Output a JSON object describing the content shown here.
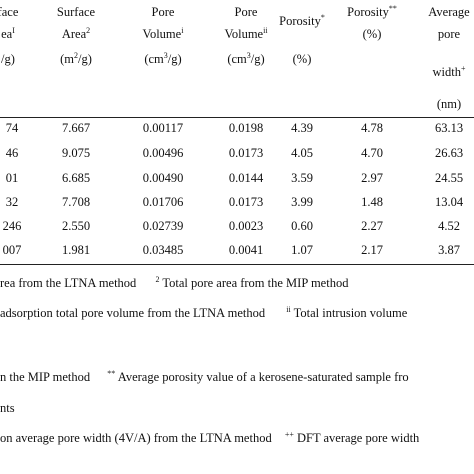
{
  "header": {
    "col1": {
      "line1": "face",
      "line2": "ea",
      "line2_sup": "I",
      "line3": "/g)"
    },
    "col2": {
      "line1": "Surface",
      "line2": "Area",
      "line2_sup": "2",
      "line3_pre": "(m",
      "line3_sup": "2",
      "line3_post": "/g)"
    },
    "col3": {
      "line1": "Pore",
      "line2": "Volume",
      "line2_sup": "i",
      "line3_pre": "(cm",
      "line3_sup": "3",
      "line3_post": "/g)"
    },
    "col4": {
      "line1": "Pore",
      "line2": "Volume",
      "line2_sup": "ii",
      "line3_pre": "(cm",
      "line3_sup": "3",
      "line3_post": "/g)"
    },
    "col5": {
      "line1": "Porosity",
      "line1_sup": "*",
      "line3": "(%)"
    },
    "col6": {
      "line1": "Porosity",
      "line1_sup": "**",
      "line2": "(%)"
    },
    "col7": {
      "line1": "Average",
      "line2": "pore",
      "line3": "width",
      "line3_sup": "+",
      "line4": "(nm)"
    }
  },
  "rows": [
    [
      "74",
      "7.667",
      "0.00117",
      "0.0198",
      "4.39",
      "4.78",
      "63.13"
    ],
    [
      "46",
      "9.075",
      "0.00496",
      "0.0173",
      "4.05",
      "4.70",
      "26.63"
    ],
    [
      "01",
      "6.685",
      "0.00490",
      "0.0144",
      "3.59",
      "2.97",
      "24.55"
    ],
    [
      "32",
      "7.708",
      "0.01706",
      "0.0173",
      "3.99",
      "1.48",
      "13.04"
    ],
    [
      "246",
      "2.550",
      "0.02739",
      "0.0023",
      "0.60",
      "2.27",
      "4.52"
    ],
    [
      "007",
      "1.981",
      "0.03485",
      "0.0041",
      "1.07",
      "2.17",
      "3.87"
    ]
  ],
  "footnotes": {
    "line1_a": "rea from the LTNA method",
    "line1_b_sup": "2",
    "line1_b": " Total pore area from the MIP method",
    "line2_a": "adsorption total pore volume from the LTNA method",
    "line2_b_sup": "ii",
    "line2_b": " Total intrusion volume",
    "line3_a": "n the MIP method",
    "line3_b_sup": "**",
    "line3_b": " Average porosity value of a kerosene-saturated sample fro",
    "line4": "nts",
    "line5_a": "on average pore width (4V/A) from the LTNA method",
    "line5_b_sup": "++",
    "line5_b": " DFT average pore width"
  }
}
